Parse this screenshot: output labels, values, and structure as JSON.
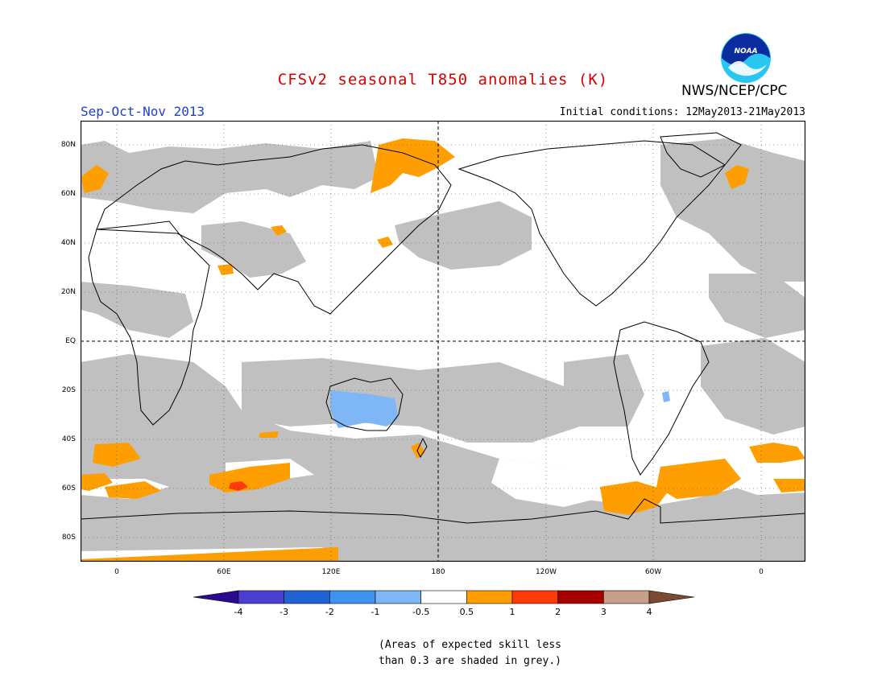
{
  "header": {
    "title": "CFSv2 seasonal T850 anomalies (K)",
    "season": "Sep-Oct-Nov 2013",
    "initial_conditions": "Initial conditions: 12May2013-21May2013",
    "agency": "NWS/NCEP/CPC",
    "logo_text": "NOAA"
  },
  "colors": {
    "title": "#d40000",
    "season": "#1f3fd6",
    "grey_shade": "#c0c0c0",
    "anomaly_0_5_to_1": "#ff9e00",
    "anomaly_1_to_2": "#ff3a0a",
    "anomaly_neg_0_5_to_1": "#7fb6f5"
  },
  "map": {
    "latitude_labels": [
      "80N",
      "60N",
      "40N",
      "20N",
      "EQ",
      "20S",
      "40S",
      "60S",
      "80S"
    ],
    "longitude_labels": [
      "0",
      "60E",
      "120E",
      "180",
      "120W",
      "60W",
      "0"
    ]
  },
  "colorbar": {
    "labels": [
      "-4",
      "-3",
      "-2",
      "-1",
      "-0.5",
      "0.5",
      "1",
      "2",
      "3",
      "4"
    ],
    "bins": [
      {
        "color": "#2a0a8f",
        "range": "< -4"
      },
      {
        "color": "#4a3fd0",
        "range": "-4 to -3"
      },
      {
        "color": "#1f64d2",
        "range": "-3 to -2"
      },
      {
        "color": "#3e93ec",
        "range": "-2 to -1"
      },
      {
        "color": "#7fb6f5",
        "range": "-1 to -0.5"
      },
      {
        "color": "#ffffff",
        "range": "-0.5 to 0.5"
      },
      {
        "color": "#ff9e00",
        "range": "0.5 to 1"
      },
      {
        "color": "#ff3a0a",
        "range": "1 to 2"
      },
      {
        "color": "#a80000",
        "range": "2 to 3"
      },
      {
        "color": "#c8a08a",
        "range": "3 to 4"
      },
      {
        "color": "#7a4a35",
        "range": "> 4"
      }
    ]
  },
  "note": {
    "line1": "(Areas of expected skill less",
    "line2": "than 0.3 are shaded in grey.)"
  }
}
